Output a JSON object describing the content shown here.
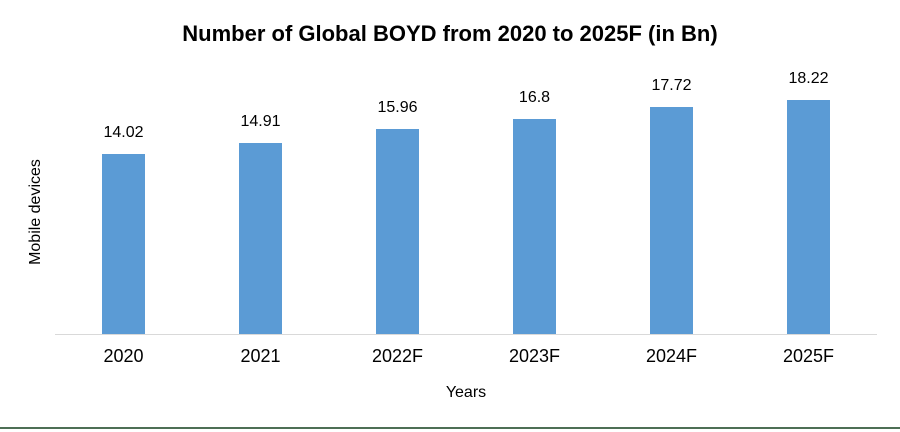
{
  "chart_data": {
    "type": "bar",
    "title": "Number of Global BOYD from 2020 to 2025F (in Bn)",
    "categories": [
      "2020",
      "2021",
      "2022F",
      "2023F",
      "2024F",
      "2025F"
    ],
    "values": [
      14.02,
      14.91,
      15.96,
      16.8,
      17.72,
      18.22
    ],
    "value_labels": [
      "14.02",
      "14.91",
      "15.96",
      "16.8",
      "17.72",
      "18.22"
    ],
    "xlabel": "Years",
    "ylabel": "Mobile devices",
    "ylim": [
      0,
      20
    ],
    "grid": false,
    "legend": false,
    "data_labels_position": "above-bar"
  },
  "colors": {
    "bar": "#5b9bd5",
    "axis_line": "#d9d9d9",
    "text": "#000000",
    "bottom_rule": "#4d6f55"
  }
}
